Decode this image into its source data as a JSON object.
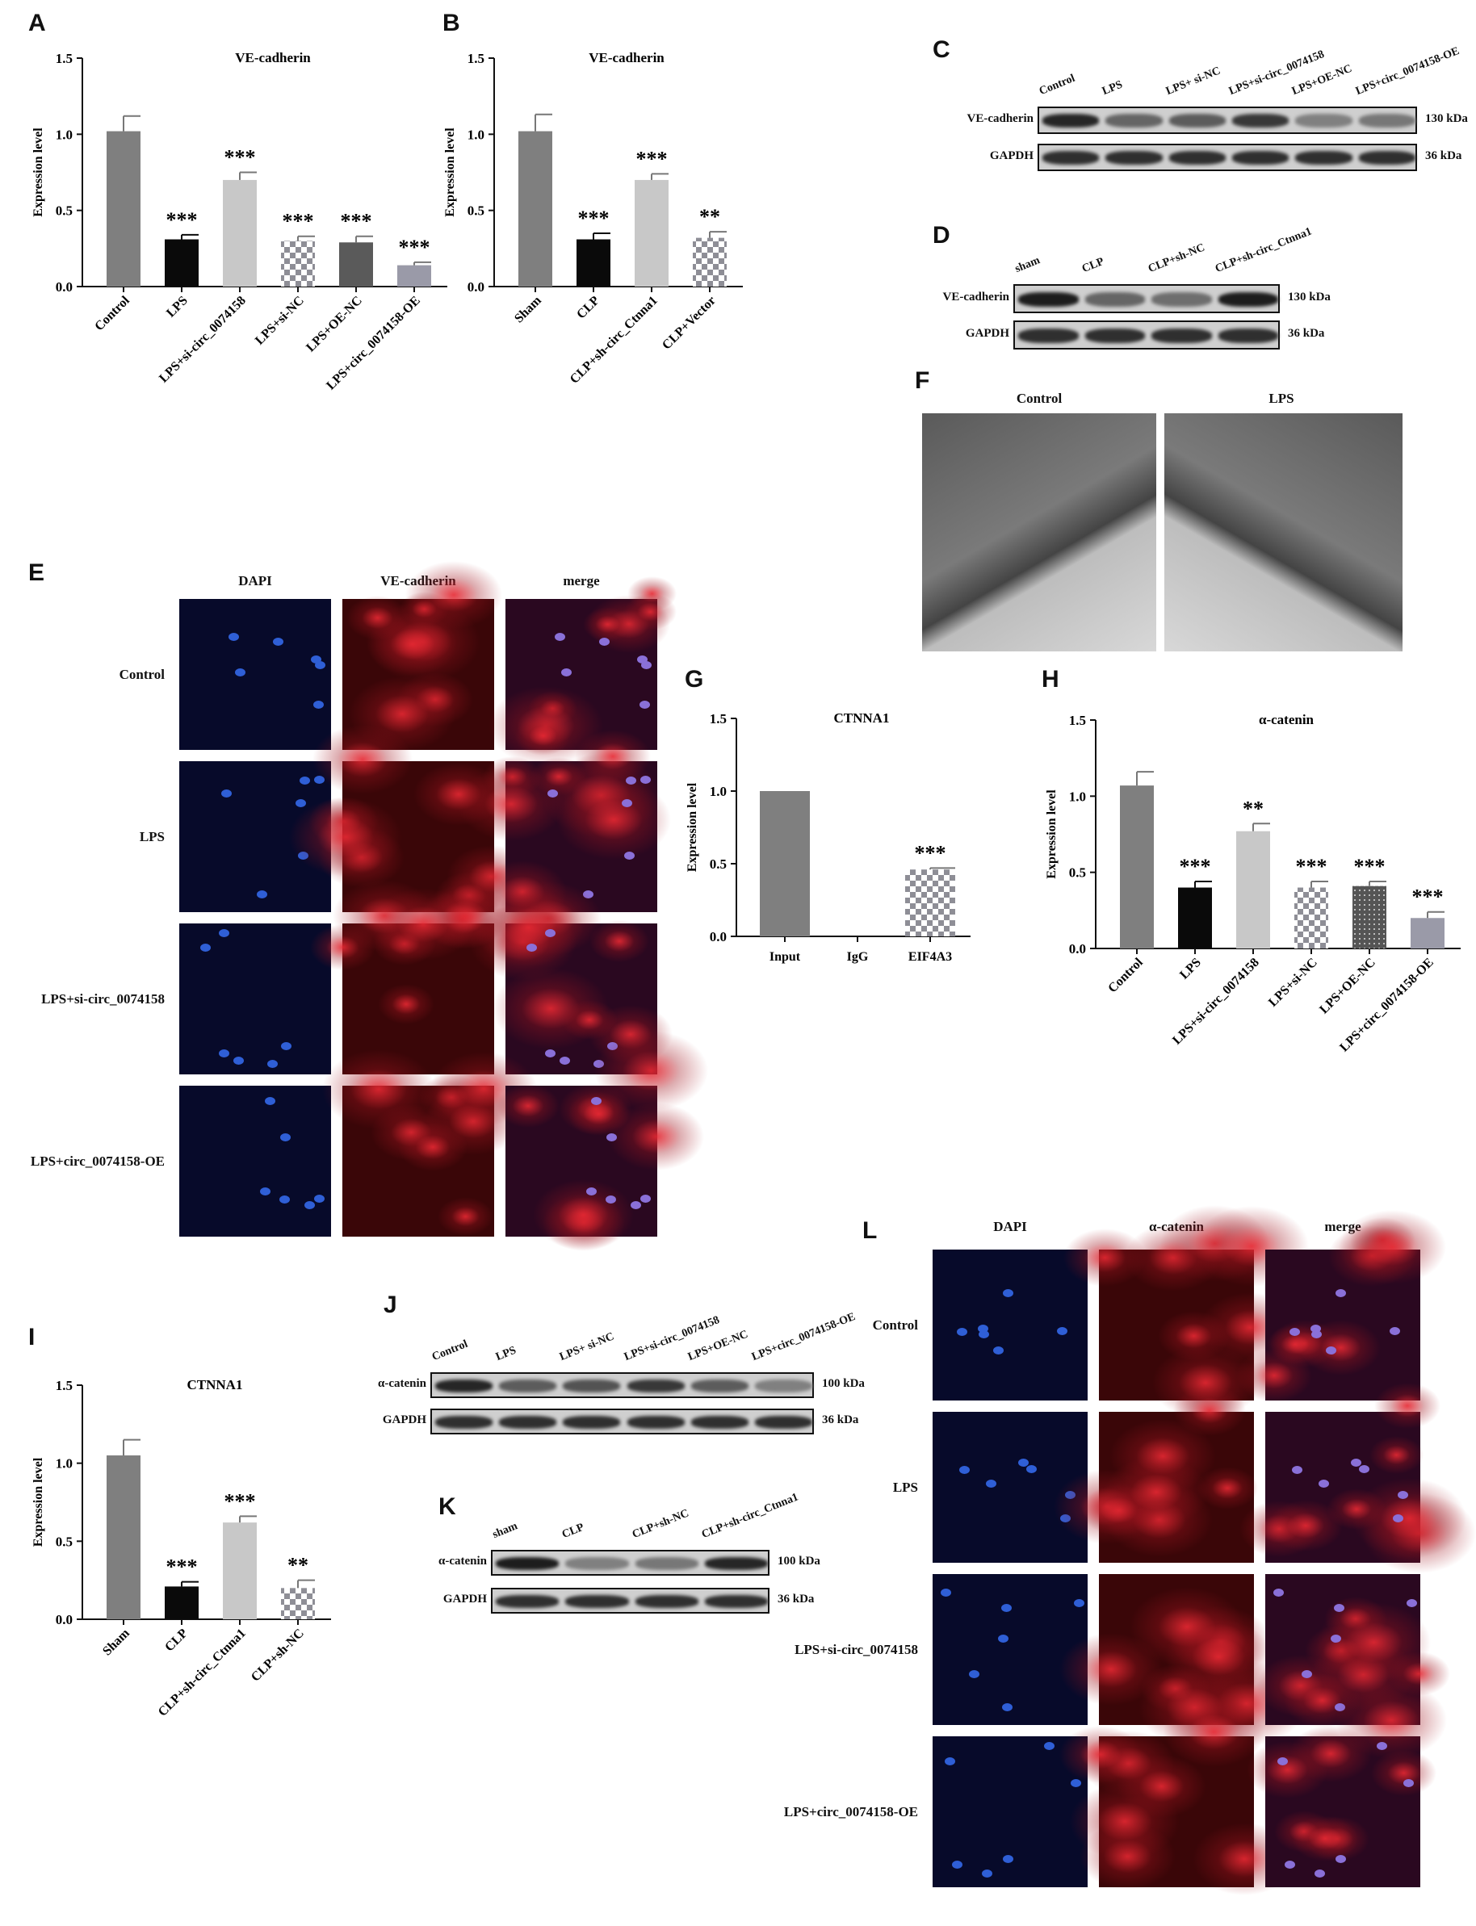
{
  "panels": {
    "A": "A",
    "B": "B",
    "C": "C",
    "D": "D",
    "E": "E",
    "F": "F",
    "G": "G",
    "H": "H",
    "I": "I",
    "J": "J",
    "K": "K",
    "L": "L"
  },
  "chart_data": [
    {
      "id": "A",
      "type": "bar",
      "title": "VE-cadherin",
      "ylabel": "Expression level",
      "ylim": [
        0,
        1.5
      ],
      "yticks": [
        "0.0",
        "0.5",
        "1.0",
        "1.5"
      ],
      "categories": [
        "Control",
        "LPS",
        "LPS+si-circ_0074158",
        "LPS+si-NC",
        "LPS+OE-NC",
        "LPS+circ_0074158-OE"
      ],
      "values": [
        1.02,
        0.31,
        0.7,
        0.3,
        0.29,
        0.14
      ],
      "errors": [
        0.1,
        0.03,
        0.05,
        0.03,
        0.04,
        0.02
      ],
      "sig": [
        "",
        "***",
        "***",
        "***",
        "***",
        "***"
      ],
      "colors": [
        "#7f7f7f",
        "#0a0a0a",
        "#c8c8c8",
        "check",
        "#5a5a5a",
        "#9a9aa8"
      ]
    },
    {
      "id": "B",
      "type": "bar",
      "title": "VE-cadherin",
      "ylabel": "Expression level",
      "ylim": [
        0,
        1.5
      ],
      "yticks": [
        "0.0",
        "0.5",
        "1.0",
        "1.5"
      ],
      "categories": [
        "Sham",
        "CLP",
        "CLP+sh-circ_Ctnna1",
        "CLP+Vector"
      ],
      "values": [
        1.02,
        0.31,
        0.7,
        0.32
      ],
      "errors": [
        0.11,
        0.04,
        0.04,
        0.04
      ],
      "sig": [
        "",
        "***",
        "***",
        "**"
      ],
      "colors": [
        "#7f7f7f",
        "#0a0a0a",
        "#c8c8c8",
        "check"
      ]
    },
    {
      "id": "G",
      "type": "bar",
      "title": "CTNNA1",
      "ylabel": "Expression level",
      "ylim": [
        0,
        1.5
      ],
      "yticks": [
        "0.0",
        "0.5",
        "1.0",
        "1.5"
      ],
      "categories": [
        "Input",
        "IgG",
        "EIF4A3"
      ],
      "values": [
        1.0,
        0.0,
        0.46
      ],
      "errors": [
        0,
        0,
        0.01
      ],
      "sig": [
        "",
        "",
        "***"
      ],
      "colors": [
        "#7f7f7f",
        "#0a0a0a",
        "check"
      ]
    },
    {
      "id": "H",
      "type": "bar",
      "title": "α-catenin",
      "ylabel": "Expression level",
      "ylim": [
        0,
        1.5
      ],
      "yticks": [
        "0.0",
        "0.5",
        "1.0",
        "1.5"
      ],
      "categories": [
        "Control",
        "LPS",
        "LPS+si-circ_0074158",
        "LPS+si-NC",
        "LPS+OE-NC",
        "LPS+circ_0074158-OE"
      ],
      "values": [
        1.07,
        0.4,
        0.77,
        0.4,
        0.41,
        0.2
      ],
      "errors": [
        0.09,
        0.04,
        0.05,
        0.04,
        0.03,
        0.04
      ],
      "sig": [
        "",
        "***",
        "**",
        "***",
        "***",
        "***"
      ],
      "colors": [
        "#7f7f7f",
        "#0a0a0a",
        "#c8c8c8",
        "check",
        "dots",
        "#9a9aa8"
      ]
    },
    {
      "id": "I",
      "type": "bar",
      "title": "CTNNA1",
      "ylabel": "Expression level",
      "ylim": [
        0,
        1.5
      ],
      "yticks": [
        "0.0",
        "0.5",
        "1.0",
        "1.5"
      ],
      "categories": [
        "Sham",
        "CLP",
        "CLP+sh-circ_Ctnna1",
        "CLP+sh-NC"
      ],
      "values": [
        1.05,
        0.21,
        0.62,
        0.2
      ],
      "errors": [
        0.1,
        0.03,
        0.04,
        0.05
      ],
      "sig": [
        "",
        "***",
        "***",
        "**"
      ],
      "colors": [
        "#7f7f7f",
        "#0a0a0a",
        "#c8c8c8",
        "check"
      ]
    }
  ],
  "blots": {
    "C": {
      "lanes": [
        "Control",
        "LPS",
        "LPS+ si-NC",
        "LPS+si-circ_0074158",
        "LPS+OE-NC",
        "LPS+circ_0074158-OE"
      ],
      "rows": [
        {
          "name": "VE-cadherin",
          "kda": "130 kDa",
          "intensity": [
            0.9,
            0.55,
            0.6,
            0.8,
            0.4,
            0.45
          ]
        },
        {
          "name": "GAPDH",
          "kda": "36 kDa",
          "intensity": [
            0.85,
            0.85,
            0.85,
            0.85,
            0.85,
            0.85
          ]
        }
      ]
    },
    "D": {
      "lanes": [
        "sham",
        "CLP",
        "CLP+sh-NC",
        "CLP+sh-circ_Ctnna1"
      ],
      "rows": [
        {
          "name": "VE-cadherin",
          "kda": "130 kDa",
          "intensity": [
            0.95,
            0.55,
            0.5,
            0.95
          ]
        },
        {
          "name": "GAPDH",
          "kda": "36 kDa",
          "intensity": [
            0.85,
            0.85,
            0.85,
            0.85
          ]
        }
      ]
    },
    "J": {
      "lanes": [
        "Control",
        "LPS",
        "LPS+ si-NC",
        "LPS+si-circ_0074158",
        "LPS+OE-NC",
        "LPS+circ_0074158-OE"
      ],
      "rows": [
        {
          "name": "α-catenin",
          "kda": "100 kDa",
          "intensity": [
            0.9,
            0.6,
            0.65,
            0.8,
            0.6,
            0.4
          ]
        },
        {
          "name": "GAPDH",
          "kda": "36 kDa",
          "intensity": [
            0.85,
            0.85,
            0.85,
            0.85,
            0.85,
            0.85
          ]
        }
      ]
    },
    "K": {
      "lanes": [
        "sham",
        "CLP",
        "CLP+sh-NC",
        "CLP+sh-circ_Ctnna1"
      ],
      "rows": [
        {
          "name": "α-catenin",
          "kda": "100 kDa",
          "intensity": [
            0.95,
            0.4,
            0.45,
            0.9
          ]
        },
        {
          "name": "GAPDH",
          "kda": "36 kDa",
          "intensity": [
            0.85,
            0.85,
            0.85,
            0.85
          ]
        }
      ]
    }
  },
  "microscopy": {
    "E": {
      "columns": [
        "DAPI",
        "VE-cadherin",
        "merge"
      ],
      "rows": [
        "Control",
        "LPS",
        "LPS+si-circ_0074158",
        "LPS+circ_0074158-OE"
      ]
    },
    "L": {
      "columns": [
        "DAPI",
        "α-catenin",
        "merge"
      ],
      "rows": [
        "Control",
        "LPS",
        "LPS+si-circ_0074158",
        "LPS+circ_0074158-OE"
      ]
    },
    "F": {
      "columns": [
        "Control",
        "LPS"
      ]
    }
  },
  "colors": {
    "dapi": "#0a0f3a",
    "red": "#c0202a",
    "nucleus": "#3a6ad8",
    "em": "#8a8a8a"
  }
}
